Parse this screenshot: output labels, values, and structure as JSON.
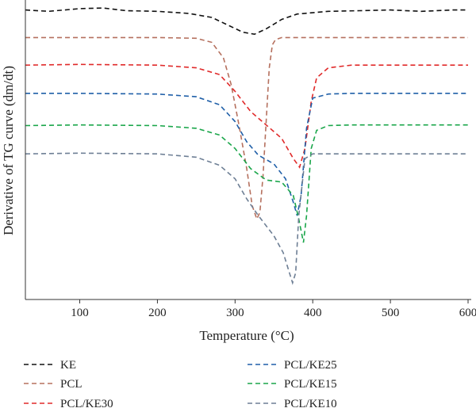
{
  "chart_data": {
    "type": "line",
    "xlabel": "Temperature (°C)",
    "ylabel": "Derivative of TG curve (dm/dt)",
    "xlim": [
      30,
      600
    ],
    "xticks": [
      100,
      200,
      300,
      400,
      500,
      600
    ],
    "yticks": false,
    "grid": false,
    "legend_placement": "bottom",
    "series": [
      {
        "name": "KE",
        "color": "#111111",
        "x": [
          30,
          60,
          100,
          130,
          160,
          200,
          240,
          270,
          290,
          310,
          325,
          340,
          360,
          380,
          420,
          460,
          500,
          540,
          580,
          600
        ],
        "y": [
          -0.4,
          -0.6,
          -0.2,
          -0.1,
          -0.5,
          -0.6,
          -0.9,
          -1.5,
          -2.6,
          -3.7,
          -4.0,
          -3.2,
          -1.8,
          -1.0,
          -0.6,
          -0.5,
          -0.4,
          -0.6,
          -0.4,
          -0.4
        ]
      },
      {
        "name": "PCL",
        "color": "#b5705e",
        "x": [
          30,
          100,
          200,
          250,
          270,
          285,
          295,
          305,
          315,
          322,
          328,
          332,
          336,
          340,
          344,
          348,
          352,
          360,
          380,
          450,
          500,
          600
        ],
        "y": [
          -4.5,
          -4.5,
          -4.5,
          -4.6,
          -5.2,
          -7.5,
          -11.5,
          -17.5,
          -24.0,
          -29.5,
          -31.5,
          -30.5,
          -25.0,
          -17.0,
          -9.0,
          -5.6,
          -4.8,
          -4.5,
          -4.5,
          -4.5,
          -4.5,
          -4.5
        ]
      },
      {
        "name": "PCL/KE30",
        "color": "#e02a2a",
        "x": [
          30,
          100,
          200,
          250,
          280,
          300,
          320,
          340,
          360,
          375,
          383,
          390,
          398,
          405,
          420,
          450,
          500,
          600
        ],
        "y": [
          -8.6,
          -8.5,
          -8.6,
          -9.0,
          -10.0,
          -12.5,
          -15.5,
          -17.5,
          -19.5,
          -22.5,
          -23.8,
          -21.0,
          -14.0,
          -10.5,
          -9.0,
          -8.6,
          -8.6,
          -8.6
        ]
      },
      {
        "name": "PCL/KE25",
        "color": "#1f5fa8",
        "x": [
          30,
          100,
          200,
          250,
          280,
          300,
          315,
          330,
          350,
          365,
          375,
          380,
          385,
          392,
          400,
          420,
          450,
          500,
          600
        ],
        "y": [
          -12.8,
          -12.8,
          -12.9,
          -13.3,
          -14.5,
          -17.0,
          -20.0,
          -22.0,
          -23.3,
          -25.5,
          -29.0,
          -31.0,
          -28.0,
          -18.0,
          -13.5,
          -12.9,
          -12.8,
          -12.8,
          -12.8
        ]
      },
      {
        "name": "PCL/KE15",
        "color": "#1aa64a",
        "x": [
          30,
          100,
          200,
          250,
          280,
          300,
          320,
          340,
          360,
          375,
          382,
          388,
          392,
          398,
          405,
          420,
          450,
          500,
          600
        ],
        "y": [
          -17.6,
          -17.5,
          -17.6,
          -18.0,
          -19.0,
          -21.0,
          -24.0,
          -25.7,
          -26.0,
          -28.0,
          -31.5,
          -35.0,
          -31.0,
          -21.0,
          -18.3,
          -17.6,
          -17.5,
          -17.5,
          -17.5
        ]
      },
      {
        "name": "PCL/KE10",
        "color": "#6e7f95",
        "x": [
          30,
          100,
          200,
          250,
          280,
          300,
          315,
          330,
          350,
          362,
          370,
          374,
          378,
          382,
          390,
          400,
          450,
          500,
          600
        ],
        "y": [
          -21.8,
          -21.7,
          -21.8,
          -22.3,
          -23.5,
          -25.5,
          -28.5,
          -31.0,
          -34.0,
          -36.5,
          -39.5,
          -41.0,
          -39.5,
          -31.0,
          -22.5,
          -21.8,
          -21.8,
          -21.8,
          -21.8
        ]
      }
    ]
  }
}
